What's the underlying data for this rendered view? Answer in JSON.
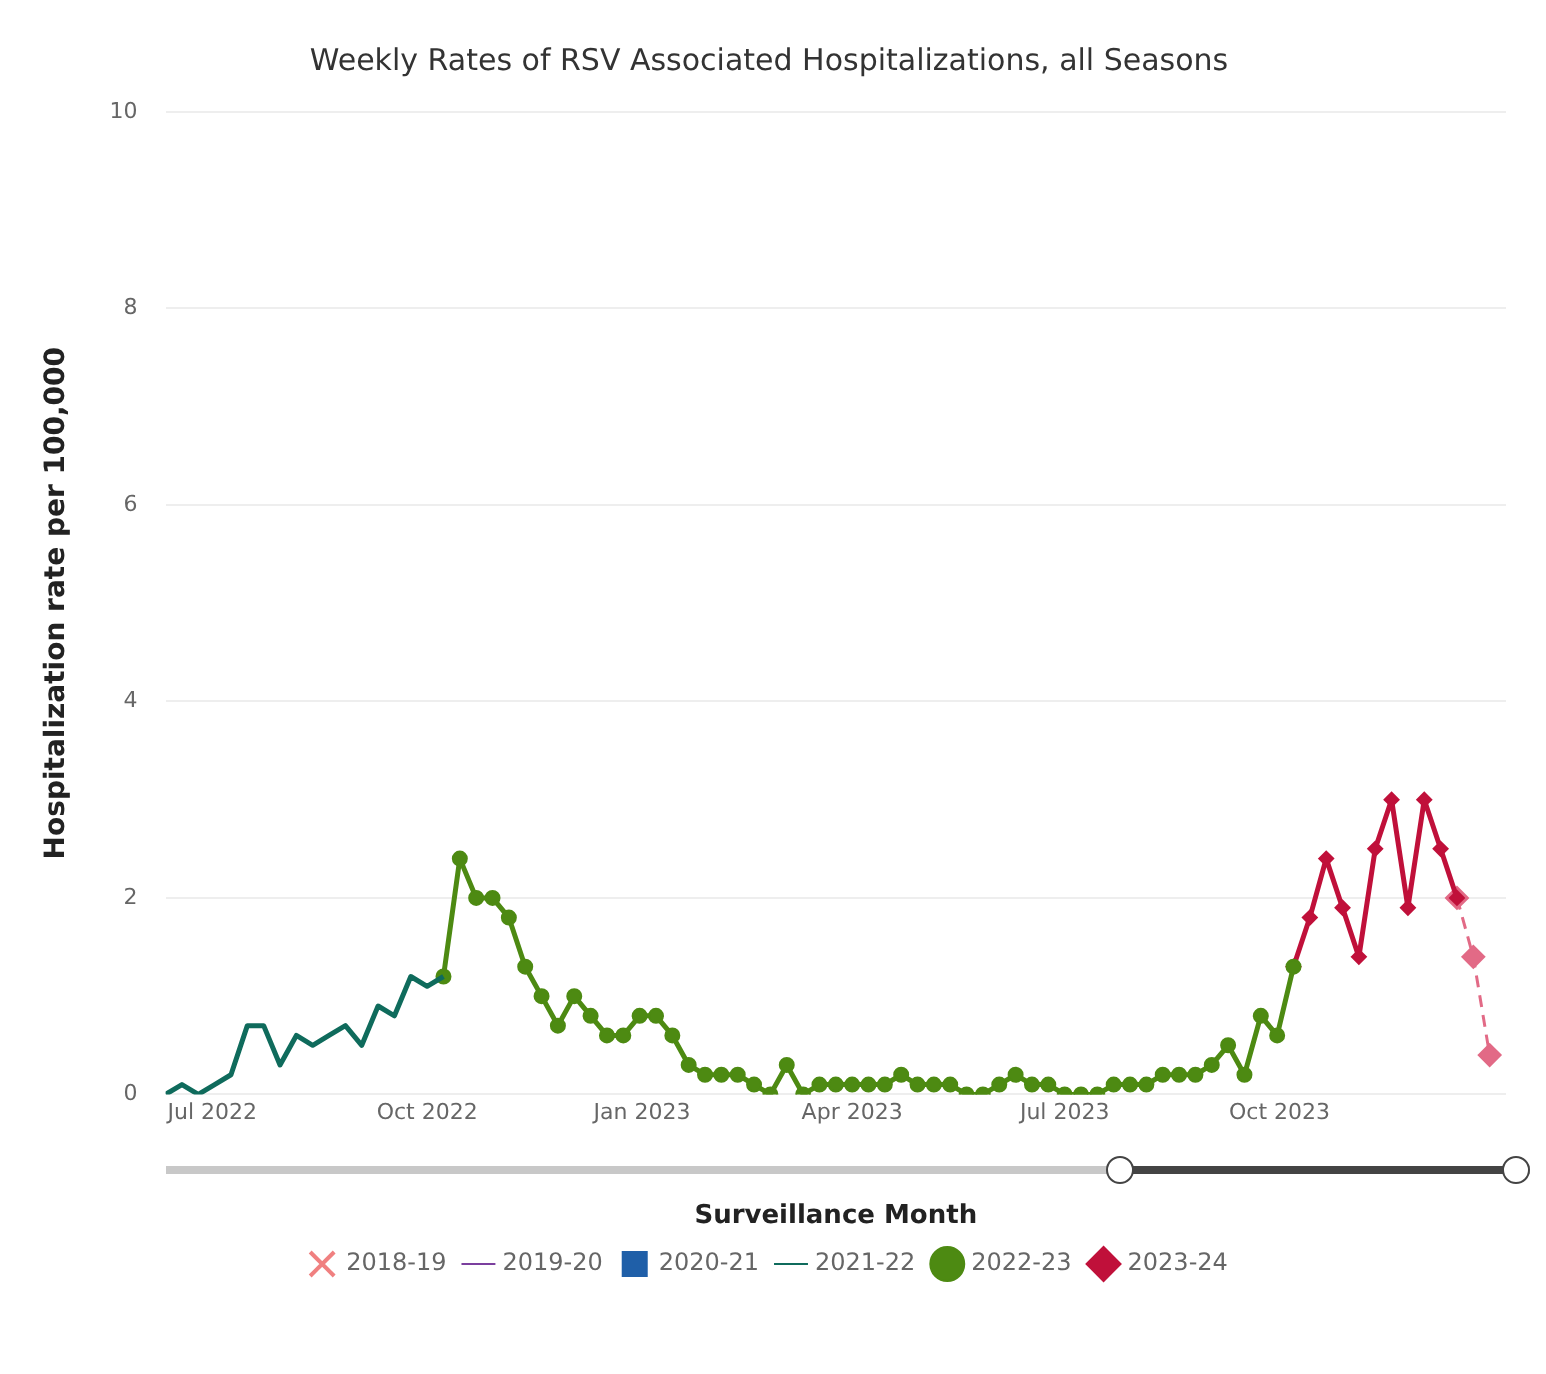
{
  "chart_data": {
    "type": "line",
    "title": "Weekly Rates of RSV Associated Hospitalizations, all Seasons",
    "xlabel": "Surveillance Month",
    "ylabel": "Hospitalization rate per 100,000",
    "xlim": [
      "2022-06-11",
      "2024-01-06"
    ],
    "xticks": [
      {
        "value": "2022-07-01",
        "label": "Jul 2022"
      },
      {
        "value": "2022-10-01",
        "label": "Oct 2022"
      },
      {
        "value": "2023-01-01",
        "label": "Jan 2023"
      },
      {
        "value": "2023-04-01",
        "label": "Apr 2023"
      },
      {
        "value": "2023-07-01",
        "label": "Jul 2023"
      },
      {
        "value": "2023-10-01",
        "label": "Oct 2023"
      }
    ],
    "ylim": [
      0,
      10
    ],
    "yticks": [
      0,
      2,
      4,
      6,
      8,
      10
    ],
    "grid": "y",
    "legend": "bottom",
    "series": [
      {
        "name": "2018-19",
        "color": "#f08080",
        "marker": "cross",
        "line_style": "dashed"
      },
      {
        "name": "2019-20",
        "color": "#7b3f9e",
        "marker": "none",
        "line_style": "dotted"
      },
      {
        "name": "2020-21",
        "color": "#1f5fa8",
        "marker": "square",
        "line_style": "solid"
      },
      {
        "name": "2021-22",
        "color": "#0f6b5c",
        "marker": "none",
        "line_style": "solid",
        "x": [
          "2022-06-11",
          "2022-06-18",
          "2022-06-25",
          "2022-07-02",
          "2022-07-09",
          "2022-07-16",
          "2022-07-23",
          "2022-07-30",
          "2022-08-06",
          "2022-08-13",
          "2022-08-20",
          "2022-08-27",
          "2022-09-03",
          "2022-09-10",
          "2022-09-17",
          "2022-09-24",
          "2022-10-01",
          "2022-10-08"
        ],
        "values": [
          0,
          0.1,
          0,
          0.1,
          0.2,
          0.7,
          0.7,
          0.3,
          0.6,
          0.5,
          0.6,
          0.7,
          0.5,
          0.9,
          0.8,
          1.2,
          1.1,
          1.2
        ]
      },
      {
        "name": "2022-23",
        "color": "#4d8a12",
        "marker": "circle",
        "line_style": "solid",
        "x": [
          "2022-10-08",
          "2022-10-15",
          "2022-10-22",
          "2022-10-29",
          "2022-11-05",
          "2022-11-12",
          "2022-11-19",
          "2022-11-26",
          "2022-12-03",
          "2022-12-10",
          "2022-12-17",
          "2022-12-24",
          "2022-12-31",
          "2023-01-07",
          "2023-01-14",
          "2023-01-21",
          "2023-01-28",
          "2023-02-04",
          "2023-02-11",
          "2023-02-18",
          "2023-02-25",
          "2023-03-04",
          "2023-03-11",
          "2023-03-18",
          "2023-03-25",
          "2023-04-01",
          "2023-04-08",
          "2023-04-15",
          "2023-04-22",
          "2023-04-29",
          "2023-05-06",
          "2023-05-13",
          "2023-05-20",
          "2023-05-27",
          "2023-06-03",
          "2023-06-10",
          "2023-06-17",
          "2023-06-24",
          "2023-07-01",
          "2023-07-08",
          "2023-07-15",
          "2023-07-22",
          "2023-07-29",
          "2023-08-05",
          "2023-08-12",
          "2023-08-19",
          "2023-08-26",
          "2023-09-02",
          "2023-09-09",
          "2023-09-16",
          "2023-09-23",
          "2023-09-30",
          "2023-10-07"
        ],
        "values": [
          1.2,
          2.4,
          2.0,
          2.0,
          1.8,
          1.3,
          1.0,
          0.7,
          1.0,
          0.8,
          0.6,
          0.6,
          0.8,
          0.8,
          0.6,
          0.3,
          0.2,
          0.2,
          0.2,
          0.1,
          0,
          0.3,
          0,
          0.1,
          0.1,
          0.1,
          0.1,
          0.1,
          0.2,
          0.1,
          0.1,
          0.1,
          0,
          0,
          0.1,
          0.2,
          0.1,
          0.1,
          0,
          0,
          0,
          0.1,
          0.1,
          0.1,
          0.2,
          0.2,
          0.2,
          0.3,
          0.5,
          0.2,
          0.8,
          0.6,
          1.3
        ]
      },
      {
        "name": "2023-24",
        "color": "#c0103a",
        "marker": "diamond",
        "line_style": "solid",
        "x": [
          "2023-10-07",
          "2023-10-14",
          "2023-10-21",
          "2023-10-28",
          "2023-11-04",
          "2023-11-11",
          "2023-11-18",
          "2023-11-25",
          "2023-12-02",
          "2023-12-09",
          "2023-12-16"
        ],
        "values": [
          1.3,
          1.8,
          2.4,
          1.9,
          1.4,
          2.5,
          3.0,
          1.9,
          3.0,
          2.5,
          2.0
        ]
      },
      {
        "color": "#e26a86",
        "marker": "diamond",
        "line_style": "dashed",
        "x": [
          "2023-12-16",
          "2023-12-23",
          "2023-12-30"
        ],
        "values": [
          2.0,
          1.4,
          0.4
        ]
      }
    ]
  }
}
